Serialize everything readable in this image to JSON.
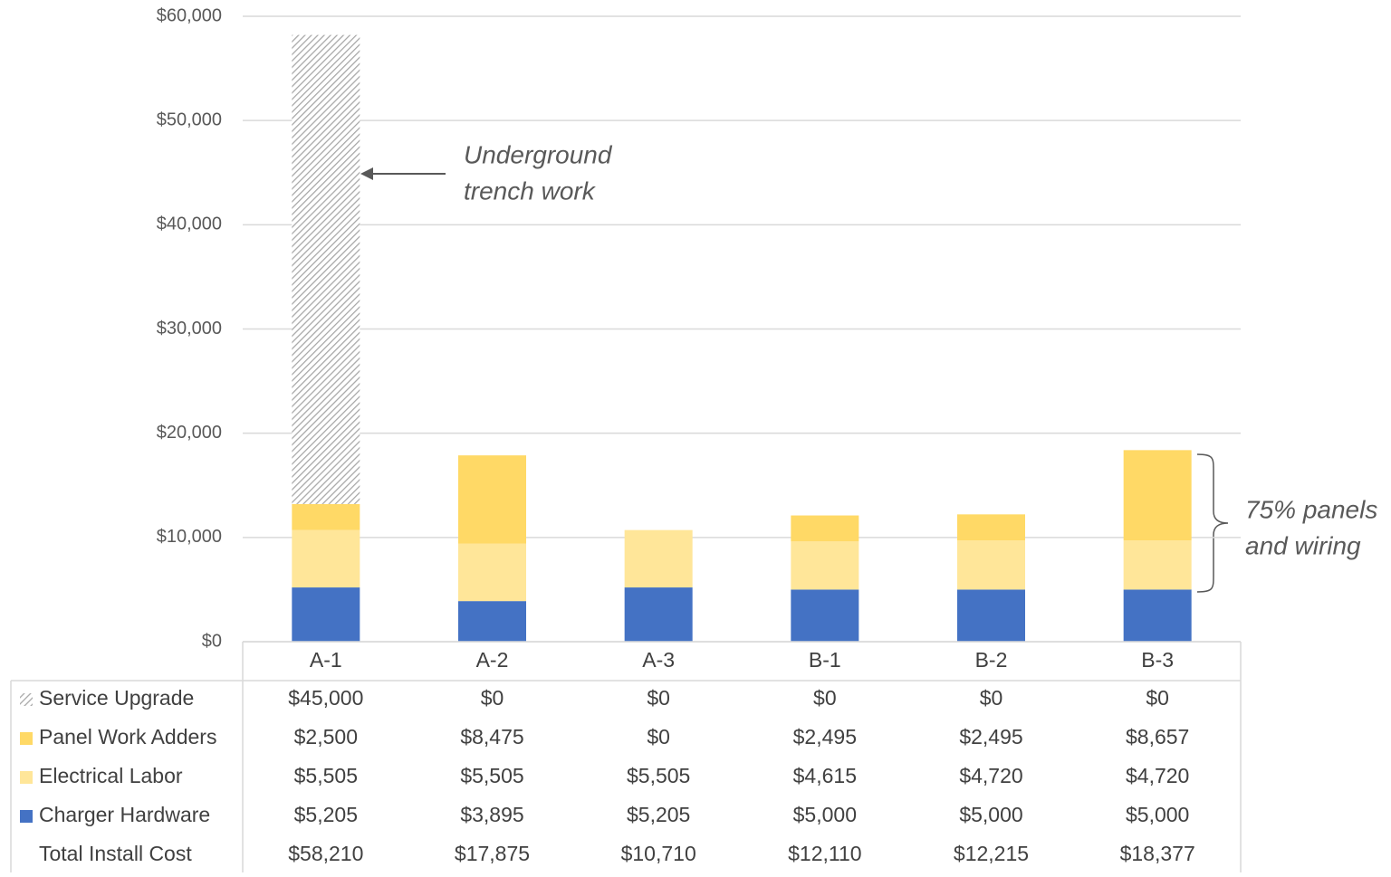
{
  "chart_data": {
    "type": "bar",
    "stacked": true,
    "categories": [
      "A-1",
      "A-2",
      "A-3",
      "B-1",
      "B-2",
      "B-3"
    ],
    "series": [
      {
        "name": "Service Upgrade",
        "color": "#a6a6a6",
        "pattern": "hatch",
        "values": [
          45000,
          0,
          0,
          0,
          0,
          0
        ],
        "value_labels": [
          "$45,000",
          "$0",
          "$0",
          "$0",
          "$0",
          "$0"
        ]
      },
      {
        "name": "Panel Work Adders",
        "color": "#ffd966",
        "values": [
          2500,
          8475,
          0,
          2495,
          2495,
          8657
        ],
        "value_labels": [
          "$2,500",
          "$8,475",
          "$0",
          "$2,495",
          "$2,495",
          "$8,657"
        ]
      },
      {
        "name": "Electrical Labor",
        "color": "#ffe699",
        "values": [
          5505,
          5505,
          5505,
          4615,
          4720,
          4720
        ],
        "value_labels": [
          "$5,505",
          "$5,505",
          "$5,505",
          "$4,615",
          "$4,720",
          "$4,720"
        ]
      },
      {
        "name": "Charger Hardware",
        "color": "#4472c4",
        "values": [
          5205,
          3895,
          5205,
          5000,
          5000,
          5000
        ],
        "value_labels": [
          "$5,205",
          "$3,895",
          "$5,205",
          "$5,000",
          "$5,000",
          "$5,000"
        ]
      }
    ],
    "totals": {
      "name": "Total Install Cost",
      "values": [
        58210,
        17875,
        10710,
        12110,
        12215,
        18377
      ],
      "value_labels": [
        "$58,210",
        "$17,875",
        "$10,710",
        "$12,110",
        "$12,215",
        "$18,377"
      ]
    },
    "ylim": [
      0,
      60000
    ],
    "yticks": [
      {
        "value": 0,
        "label": "$0"
      },
      {
        "value": 10000,
        "label": "$10,000"
      },
      {
        "value": 20000,
        "label": "$20,000"
      },
      {
        "value": 30000,
        "label": "$30,000"
      },
      {
        "value": 40000,
        "label": "$40,000"
      },
      {
        "value": 50000,
        "label": "$50,000"
      },
      {
        "value": 60000,
        "label": "$60,000"
      }
    ],
    "grid": true,
    "annotations": [
      {
        "text": [
          "Underground",
          "trench work"
        ]
      },
      {
        "text": [
          "75% panels",
          "and wiring"
        ]
      }
    ]
  }
}
